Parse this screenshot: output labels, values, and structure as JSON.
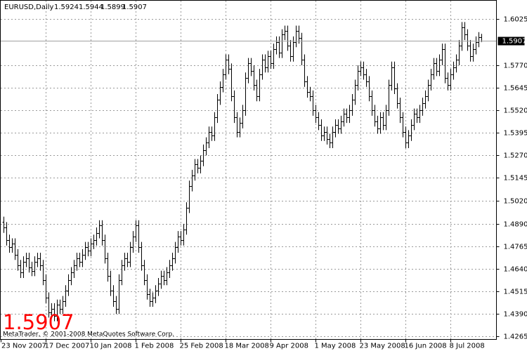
{
  "chart_data": {
    "type": "ohlc",
    "title": "EURUSD,Daily",
    "copyright": "MetaTrader, © 2001-2008 MetaQuotes Software Corp.",
    "color": "#000000",
    "grid": true,
    "ylim": [
      1.4249,
      1.613
    ],
    "yticks": [
      {
        "value": 1.6025,
        "label": "1.6025"
      },
      {
        "value": 1.577,
        "label": "1.5770"
      },
      {
        "value": 1.5645,
        "label": "1.5645"
      },
      {
        "value": 1.552,
        "label": "1.5520"
      },
      {
        "value": 1.5395,
        "label": "1.5395"
      },
      {
        "value": 1.527,
        "label": "1.5270"
      },
      {
        "value": 1.5145,
        "label": "1.5145"
      },
      {
        "value": 1.502,
        "label": "1.5020"
      },
      {
        "value": 1.489,
        "label": "1.4890"
      },
      {
        "value": 1.4765,
        "label": "1.4765"
      },
      {
        "value": 1.464,
        "label": "1.4640"
      },
      {
        "value": 1.4515,
        "label": "1.4515"
      },
      {
        "value": 1.439,
        "label": "1.4390"
      },
      {
        "value": 1.4265,
        "label": "1.4265"
      }
    ],
    "categories": [
      "23 Nov 2007",
      null,
      null,
      null,
      null,
      null,
      null,
      null,
      null,
      null,
      null,
      null,
      null,
      null,
      null,
      null,
      "17 Dec 2007",
      null,
      null,
      null,
      null,
      null,
      null,
      null,
      null,
      null,
      null,
      null,
      null,
      null,
      null,
      null,
      "10 Jan 2008",
      null,
      null,
      null,
      null,
      null,
      null,
      null,
      null,
      null,
      null,
      null,
      null,
      null,
      null,
      null,
      "1 Feb 2008",
      null,
      null,
      null,
      null,
      null,
      null,
      null,
      null,
      null,
      null,
      null,
      null,
      null,
      null,
      null,
      "25 Feb 2008",
      null,
      null,
      null,
      null,
      null,
      null,
      null,
      null,
      null,
      null,
      null,
      null,
      null,
      null,
      null,
      "18 Mar 2008",
      null,
      null,
      null,
      null,
      null,
      null,
      null,
      null,
      null,
      null,
      null,
      null,
      null,
      null,
      null,
      "9 Apr 2008",
      null,
      null,
      null,
      null,
      null,
      null,
      null,
      null,
      null,
      null,
      null,
      null,
      null,
      null,
      null,
      "1 May 2008",
      null,
      null,
      null,
      null,
      null,
      null,
      null,
      null,
      null,
      null,
      null,
      null,
      null,
      null,
      null,
      "23 May 2008",
      null,
      null,
      null,
      null,
      null,
      null,
      null,
      null,
      null,
      null,
      null,
      null,
      null,
      null,
      null,
      "16 Jun 2008",
      null,
      null,
      null,
      null,
      null,
      null,
      null,
      null,
      null,
      null,
      null,
      null,
      null,
      null,
      null,
      "8 Jul 2008",
      null,
      null,
      null,
      null,
      null,
      null,
      null,
      null,
      null,
      null
    ],
    "open": [
      1.49,
      1.487,
      1.48,
      1.476,
      1.478,
      1.472,
      1.466,
      1.462,
      1.468,
      1.47,
      1.465,
      1.463,
      1.468,
      1.47,
      1.466,
      1.458,
      1.448,
      1.44,
      1.442,
      1.438,
      1.444,
      1.442,
      1.446,
      1.452,
      1.458,
      1.462,
      1.466,
      1.47,
      1.468,
      1.472,
      1.476,
      1.474,
      1.478,
      1.48,
      1.484,
      1.488,
      1.48,
      1.47,
      1.46,
      1.452,
      1.446,
      1.442,
      1.458,
      1.466,
      1.47,
      1.468,
      1.476,
      1.482,
      1.488,
      1.476,
      1.466,
      1.458,
      1.45,
      1.446,
      1.448,
      1.452,
      1.456,
      1.46,
      1.458,
      1.462,
      1.466,
      1.47,
      1.476,
      1.482,
      1.48,
      1.486,
      1.498,
      1.51,
      1.516,
      1.522,
      1.52,
      1.524,
      1.53,
      1.534,
      1.54,
      1.538,
      1.548,
      1.558,
      1.565,
      1.572,
      1.58,
      1.575,
      1.56,
      1.548,
      1.54,
      1.545,
      1.552,
      1.57,
      1.578,
      1.574,
      1.566,
      1.56,
      1.572,
      1.58,
      1.576,
      1.582,
      1.578,
      1.586,
      1.59,
      1.584,
      1.594,
      1.596,
      1.588,
      1.582,
      1.59,
      1.596,
      1.592,
      1.58,
      1.568,
      1.562,
      1.56,
      1.552,
      1.548,
      1.544,
      1.538,
      1.54,
      1.536,
      1.534,
      1.54,
      1.544,
      1.542,
      1.546,
      1.55,
      1.548,
      1.552,
      1.558,
      1.566,
      1.574,
      1.576,
      1.572,
      1.568,
      1.56,
      1.552,
      1.546,
      1.542,
      1.548,
      1.544,
      1.552,
      1.566,
      1.576,
      1.564,
      1.556,
      1.548,
      1.54,
      1.534,
      1.538,
      1.544,
      1.55,
      1.548,
      1.552,
      1.556,
      1.56,
      1.566,
      1.572,
      1.578,
      1.574,
      1.58,
      1.586,
      1.57,
      1.566,
      1.572,
      1.576,
      1.58,
      1.588,
      1.598,
      1.594,
      1.588,
      1.582,
      1.586,
      1.59,
      1.5924
    ],
    "high": [
      1.493,
      1.49,
      1.483,
      1.481,
      1.481,
      1.475,
      1.469,
      1.471,
      1.473,
      1.473,
      1.468,
      1.471,
      1.473,
      1.473,
      1.469,
      1.461,
      1.451,
      1.445,
      1.445,
      1.447,
      1.447,
      1.449,
      1.455,
      1.461,
      1.465,
      1.469,
      1.473,
      1.473,
      1.475,
      1.479,
      1.479,
      1.481,
      1.483,
      1.487,
      1.491,
      1.491,
      1.483,
      1.473,
      1.463,
      1.455,
      1.449,
      1.461,
      1.469,
      1.473,
      1.473,
      1.479,
      1.485,
      1.491,
      1.491,
      1.479,
      1.469,
      1.461,
      1.453,
      1.451,
      1.455,
      1.459,
      1.463,
      1.463,
      1.465,
      1.469,
      1.473,
      1.479,
      1.485,
      1.485,
      1.489,
      1.501,
      1.513,
      1.519,
      1.525,
      1.525,
      1.527,
      1.533,
      1.537,
      1.543,
      1.543,
      1.551,
      1.561,
      1.568,
      1.575,
      1.583,
      1.583,
      1.578,
      1.563,
      1.551,
      1.548,
      1.555,
      1.573,
      1.581,
      1.581,
      1.577,
      1.569,
      1.575,
      1.583,
      1.583,
      1.585,
      1.585,
      1.589,
      1.593,
      1.593,
      1.597,
      1.599,
      1.599,
      1.591,
      1.593,
      1.599,
      1.599,
      1.595,
      1.583,
      1.571,
      1.565,
      1.563,
      1.555,
      1.551,
      1.547,
      1.543,
      1.543,
      1.539,
      1.543,
      1.547,
      1.547,
      1.549,
      1.553,
      1.553,
      1.555,
      1.561,
      1.569,
      1.577,
      1.579,
      1.579,
      1.575,
      1.571,
      1.563,
      1.555,
      1.549,
      1.551,
      1.551,
      1.555,
      1.569,
      1.579,
      1.579,
      1.567,
      1.559,
      1.551,
      1.543,
      1.541,
      1.547,
      1.553,
      1.553,
      1.555,
      1.559,
      1.563,
      1.569,
      1.575,
      1.581,
      1.581,
      1.583,
      1.589,
      1.589,
      1.573,
      1.575,
      1.579,
      1.583,
      1.591,
      1.601,
      1.601,
      1.597,
      1.591,
      1.589,
      1.593,
      1.5954,
      1.5944
    ],
    "low": [
      1.484,
      1.477,
      1.473,
      1.473,
      1.469,
      1.463,
      1.459,
      1.459,
      1.465,
      1.462,
      1.46,
      1.46,
      1.465,
      1.463,
      1.455,
      1.445,
      1.437,
      1.437,
      1.435,
      1.435,
      1.439,
      1.439,
      1.443,
      1.449,
      1.455,
      1.459,
      1.463,
      1.465,
      1.465,
      1.469,
      1.471,
      1.471,
      1.475,
      1.477,
      1.481,
      1.477,
      1.467,
      1.457,
      1.449,
      1.443,
      1.439,
      1.439,
      1.455,
      1.463,
      1.465,
      1.465,
      1.473,
      1.479,
      1.473,
      1.463,
      1.455,
      1.447,
      1.443,
      1.443,
      1.445,
      1.449,
      1.453,
      1.455,
      1.455,
      1.459,
      1.463,
      1.467,
      1.473,
      1.477,
      1.477,
      1.483,
      1.495,
      1.507,
      1.513,
      1.517,
      1.517,
      1.521,
      1.527,
      1.531,
      1.535,
      1.535,
      1.545,
      1.555,
      1.562,
      1.569,
      1.572,
      1.557,
      1.545,
      1.537,
      1.537,
      1.542,
      1.549,
      1.567,
      1.571,
      1.563,
      1.557,
      1.557,
      1.569,
      1.573,
      1.573,
      1.575,
      1.575,
      1.583,
      1.581,
      1.581,
      1.591,
      1.585,
      1.579,
      1.579,
      1.587,
      1.589,
      1.577,
      1.565,
      1.559,
      1.557,
      1.549,
      1.545,
      1.541,
      1.535,
      1.535,
      1.533,
      1.531,
      1.531,
      1.537,
      1.539,
      1.539,
      1.543,
      1.545,
      1.545,
      1.549,
      1.555,
      1.563,
      1.571,
      1.569,
      1.565,
      1.557,
      1.549,
      1.543,
      1.539,
      1.539,
      1.541,
      1.541,
      1.549,
      1.563,
      1.561,
      1.553,
      1.545,
      1.537,
      1.531,
      1.531,
      1.535,
      1.541,
      1.545,
      1.545,
      1.549,
      1.553,
      1.557,
      1.563,
      1.569,
      1.571,
      1.571,
      1.577,
      1.567,
      1.563,
      1.563,
      1.569,
      1.573,
      1.577,
      1.585,
      1.591,
      1.585,
      1.579,
      1.579,
      1.583,
      1.587,
      1.5899
    ],
    "close": [
      1.487,
      1.48,
      1.476,
      1.478,
      1.472,
      1.466,
      1.462,
      1.468,
      1.47,
      1.465,
      1.463,
      1.468,
      1.47,
      1.466,
      1.458,
      1.448,
      1.44,
      1.442,
      1.438,
      1.444,
      1.442,
      1.446,
      1.452,
      1.458,
      1.462,
      1.466,
      1.47,
      1.468,
      1.472,
      1.476,
      1.474,
      1.478,
      1.48,
      1.484,
      1.488,
      1.48,
      1.47,
      1.46,
      1.452,
      1.446,
      1.442,
      1.458,
      1.466,
      1.47,
      1.468,
      1.476,
      1.482,
      1.488,
      1.476,
      1.466,
      1.458,
      1.45,
      1.446,
      1.448,
      1.452,
      1.456,
      1.46,
      1.458,
      1.462,
      1.466,
      1.47,
      1.476,
      1.482,
      1.48,
      1.486,
      1.498,
      1.51,
      1.516,
      1.522,
      1.52,
      1.524,
      1.53,
      1.534,
      1.54,
      1.538,
      1.548,
      1.558,
      1.565,
      1.572,
      1.58,
      1.575,
      1.56,
      1.548,
      1.54,
      1.545,
      1.552,
      1.57,
      1.578,
      1.574,
      1.566,
      1.56,
      1.572,
      1.58,
      1.576,
      1.582,
      1.578,
      1.586,
      1.59,
      1.584,
      1.594,
      1.596,
      1.588,
      1.582,
      1.59,
      1.596,
      1.592,
      1.58,
      1.568,
      1.562,
      1.56,
      1.552,
      1.548,
      1.544,
      1.538,
      1.54,
      1.536,
      1.534,
      1.54,
      1.544,
      1.542,
      1.546,
      1.55,
      1.548,
      1.552,
      1.558,
      1.566,
      1.574,
      1.576,
      1.572,
      1.568,
      1.56,
      1.552,
      1.546,
      1.542,
      1.548,
      1.544,
      1.552,
      1.566,
      1.576,
      1.564,
      1.556,
      1.548,
      1.54,
      1.534,
      1.538,
      1.544,
      1.55,
      1.548,
      1.552,
      1.556,
      1.56,
      1.566,
      1.572,
      1.578,
      1.574,
      1.58,
      1.586,
      1.57,
      1.566,
      1.572,
      1.576,
      1.58,
      1.588,
      1.598,
      1.594,
      1.588,
      1.582,
      1.586,
      1.59,
      1.5924,
      1.5907
    ]
  }
}
